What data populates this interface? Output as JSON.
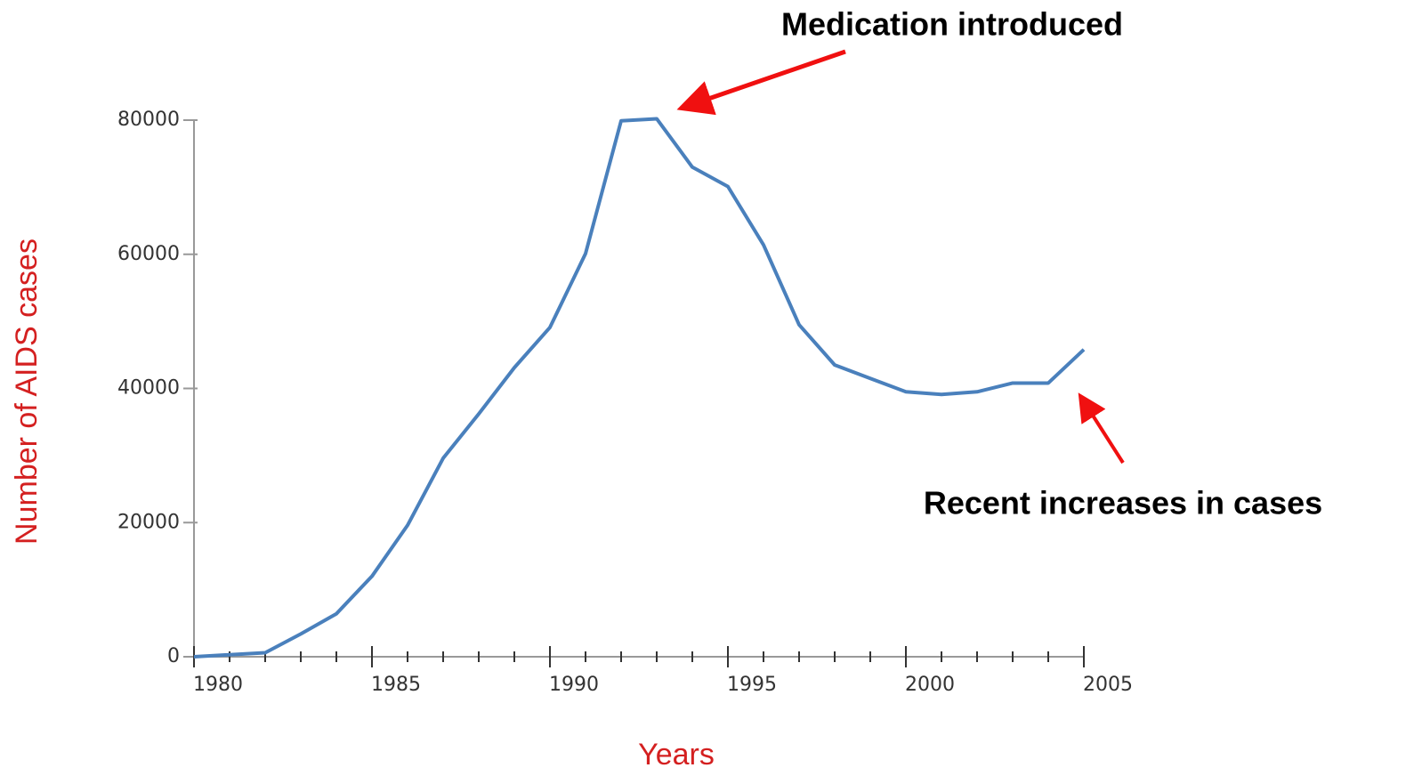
{
  "chart_data": {
    "type": "line",
    "x_label": "Years",
    "y_label": "Number of AIDS cases",
    "annotations": [
      "Medication introduced",
      "Recent increases in cases"
    ],
    "x": [
      1980,
      1981,
      1982,
      1983,
      1984,
      1985,
      1986,
      1987,
      1988,
      1989,
      1990,
      1991,
      1992,
      1993,
      1994,
      1995,
      1996,
      1997,
      1998,
      1999,
      2000,
      2001,
      2002,
      2003,
      2004,
      2005
    ],
    "series": [
      {
        "name": "AIDS cases",
        "color": "#4a80bc",
        "values": [
          0,
          300,
          600,
          3400,
          6400,
          12000,
          19600,
          29600,
          36200,
          43100,
          49100,
          60100,
          79900,
          80200,
          73000,
          70100,
          61400,
          49500,
          43500,
          41500,
          39500,
          39100,
          39500,
          40800,
          40800,
          45800
        ]
      }
    ],
    "xlim": [
      1980,
      2005
    ],
    "xticks": [
      1980,
      1985,
      1990,
      1995,
      2000,
      2005
    ],
    "ylim": [
      0,
      80000
    ],
    "yticks": [
      0,
      20000,
      40000,
      60000,
      80000
    ]
  }
}
